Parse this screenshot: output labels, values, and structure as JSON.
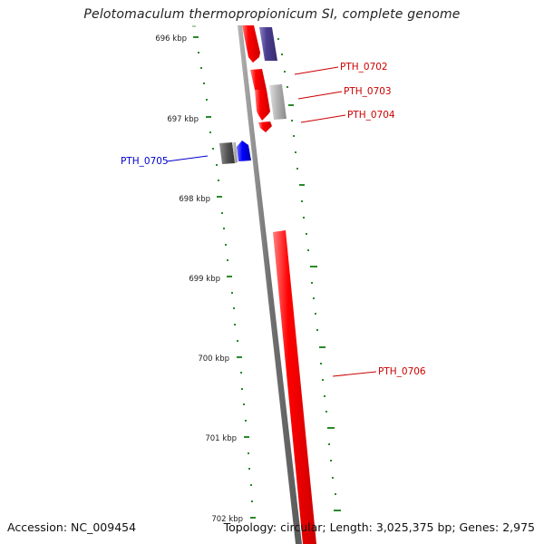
{
  "map": {
    "title": "Pelotomaculum thermopropionicum SI, complete genome",
    "accession_text": "Accession: NC_009454",
    "summary_text": "Topology: circular; Length: 3,025,375 bp; Genes: 2,975"
  },
  "kbp_ticks": [
    "696 kbp",
    "697 kbp",
    "698 kbp",
    "699 kbp",
    "700 kbp",
    "701 kbp",
    "702 kbp"
  ],
  "gene_labels": [
    {
      "id": "PTH_0702",
      "color": "#cc0000"
    },
    {
      "id": "PTH_0703",
      "color": "#cc0000"
    },
    {
      "id": "PTH_0704",
      "color": "#cc0000"
    },
    {
      "id": "PTH_0705",
      "color": "#0000cc"
    },
    {
      "id": "PTH_0706",
      "color": "#cc0000"
    }
  ],
  "colors": {
    "backbone": "#808080",
    "forward_gene": "#ff0000",
    "reverse_gene_dark": "#4a3d8f",
    "blue_gene": "#0000ff",
    "gray_gene": "#9a9a9a",
    "dark_gene": "#555555",
    "gc_marks": "#2a8a2a"
  }
}
